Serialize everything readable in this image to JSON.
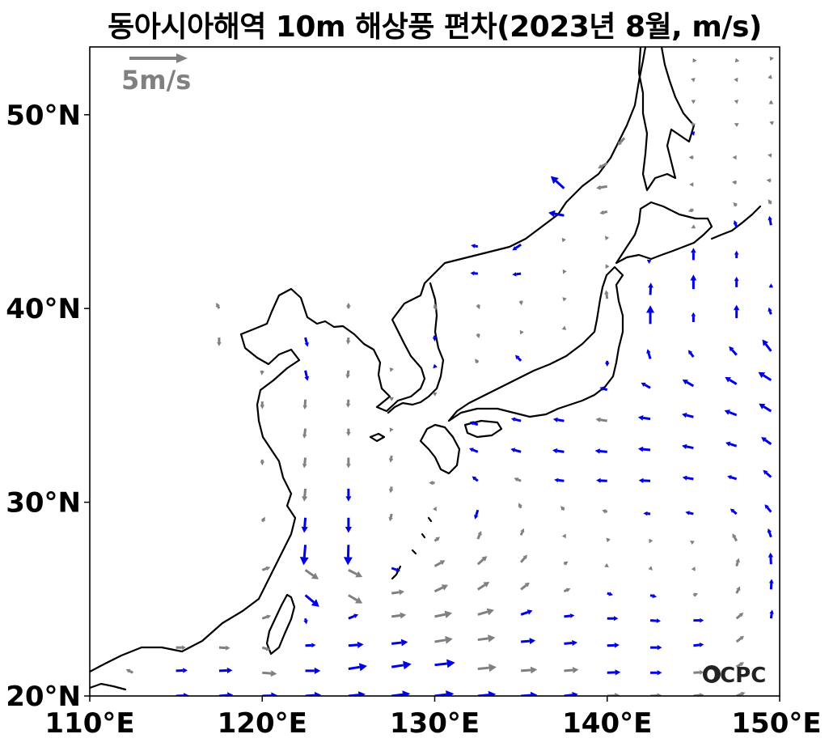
{
  "title": "동아시아해역 10m 해상풍 편차(2023년 8월, m/s)",
  "map": {
    "lon_range": [
      110,
      150
    ],
    "lat_range": [
      20,
      53.5
    ],
    "x_ticks": [
      {
        "lon": 110,
        "label": "110°E"
      },
      {
        "lon": 120,
        "label": "120°E"
      },
      {
        "lon": 130,
        "label": "130°E"
      },
      {
        "lon": 140,
        "label": "140°E"
      },
      {
        "lon": 150,
        "label": "150°E"
      }
    ],
    "y_ticks": [
      {
        "lat": 20,
        "label": "20°N"
      },
      {
        "lat": 30,
        "label": "30°N"
      },
      {
        "lat": 40,
        "label": "40°N"
      },
      {
        "lat": 50,
        "label": "50°N"
      }
    ]
  },
  "reference_vector": {
    "label": "5m/s",
    "speed": 5,
    "color": "#808080"
  },
  "vector_colors": {
    "significant": "#0000e6",
    "normal": "#808080",
    "coast": "#000000"
  },
  "logo": {
    "text": "OCPC"
  },
  "wind_vectors": [
    [
      115,
      20,
      2.2,
      0.1,
      1
    ],
    [
      117.5,
      20,
      2.4,
      0.2,
      1
    ],
    [
      120,
      20,
      2.6,
      0.1,
      1
    ],
    [
      122.5,
      20,
      2.7,
      0.2,
      1
    ],
    [
      125,
      20,
      2.9,
      0.3,
      1
    ],
    [
      127.5,
      20,
      3.2,
      0.4,
      1
    ],
    [
      130,
      20,
      3.3,
      0.4,
      1
    ],
    [
      132.5,
      20,
      3.1,
      0.3,
      1
    ],
    [
      135,
      20,
      2.8,
      0.2,
      1
    ],
    [
      137.5,
      20,
      2.4,
      0.3,
      1
    ],
    [
      140,
      20,
      2.2,
      0.1,
      0
    ],
    [
      142.5,
      20,
      2,
      0.1,
      0
    ],
    [
      145,
      20,
      1.8,
      0.2,
      0
    ],
    [
      147.5,
      20,
      1.5,
      0.6,
      0
    ],
    [
      112.5,
      21.2,
      -1.2,
      0.6,
      0
    ],
    [
      115,
      21.3,
      2,
      0.1,
      1
    ],
    [
      117.5,
      21.3,
      2.3,
      0.1,
      1
    ],
    [
      120,
      21.2,
      2.5,
      -0.2,
      0
    ],
    [
      122.5,
      21.3,
      2.6,
      0,
      1
    ],
    [
      125,
      21.4,
      3.2,
      0.5,
      1
    ],
    [
      127.5,
      21.5,
      3.4,
      0.5,
      1
    ],
    [
      130,
      21.6,
      3.5,
      0.4,
      1
    ],
    [
      132.5,
      21.4,
      3.2,
      0.3,
      0
    ],
    [
      135,
      21.3,
      2.8,
      0.2,
      0
    ],
    [
      137.5,
      21.3,
      2.5,
      0.2,
      0
    ],
    [
      140,
      21.2,
      2.3,
      0.1,
      1
    ],
    [
      142.5,
      21.2,
      2,
      0,
      1
    ],
    [
      145,
      21.2,
      1.8,
      0.1,
      0
    ],
    [
      147.5,
      21.5,
      1.3,
      0.8,
      0
    ],
    [
      115,
      22.5,
      1.7,
      0,
      0
    ],
    [
      117.5,
      22.5,
      1.9,
      -0.1,
      0
    ],
    [
      120,
      22.5,
      1.4,
      -0.4,
      0
    ],
    [
      122.5,
      22.6,
      1.8,
      0.1,
      1
    ],
    [
      125,
      22.6,
      2.6,
      0.2,
      1
    ],
    [
      127.5,
      22.7,
      2.8,
      0.3,
      1
    ],
    [
      130,
      22.8,
      3.1,
      0.5,
      0
    ],
    [
      132.5,
      22.9,
      3,
      0.4,
      0
    ],
    [
      135,
      22.8,
      2.5,
      0.2,
      1
    ],
    [
      137.5,
      22.7,
      2.3,
      0.2,
      1
    ],
    [
      140,
      22.6,
      2.1,
      0.1,
      1
    ],
    [
      142.5,
      22.5,
      2,
      0,
      1
    ],
    [
      145,
      22.6,
      1.8,
      0.2,
      1
    ],
    [
      147.5,
      22.8,
      1.3,
      1,
      0
    ],
    [
      120,
      24,
      1.5,
      0.5,
      0
    ],
    [
      122.5,
      24,
      0.2,
      -1,
      1
    ],
    [
      125,
      24,
      1.7,
      0.7,
      1
    ],
    [
      127.5,
      24.1,
      2.5,
      0.3,
      0
    ],
    [
      130,
      24.1,
      3,
      0.6,
      0
    ],
    [
      132.5,
      24.2,
      2.8,
      0.8,
      0
    ],
    [
      135,
      24.2,
      2,
      0.7,
      1
    ],
    [
      137.5,
      24.1,
      1.8,
      0.2,
      1
    ],
    [
      140,
      24,
      1.9,
      0,
      1
    ],
    [
      142.5,
      23.9,
      1.8,
      -0.1,
      1
    ],
    [
      145,
      23.9,
      1.8,
      0,
      1
    ],
    [
      147.5,
      24,
      1.2,
      1,
      0
    ],
    [
      149.5,
      24,
      0.2,
      1.5,
      1
    ],
    [
      122.5,
      25.2,
      2.4,
      -2,
      1
    ],
    [
      125,
      25.2,
      2.4,
      -1.4,
      0
    ],
    [
      127.5,
      25.3,
      2.2,
      0.3,
      0
    ],
    [
      130,
      25.4,
      2.3,
      1.1,
      0
    ],
    [
      132.5,
      25.5,
      2,
      1.3,
      0
    ],
    [
      135,
      25.5,
      1.5,
      1.2,
      0
    ],
    [
      137.5,
      25.4,
      1.1,
      0.5,
      0
    ],
    [
      140,
      25.3,
      1,
      -0.3,
      1
    ],
    [
      142.5,
      25.2,
      1.1,
      -0.3,
      1
    ],
    [
      145,
      25.2,
      0.8,
      0.3,
      0
    ],
    [
      147.5,
      25.3,
      0.6,
      1.2,
      0
    ],
    [
      149.5,
      25.5,
      0.1,
      1.8,
      1
    ],
    [
      120,
      26.5,
      1.4,
      0.5,
      0
    ],
    [
      122.5,
      26.5,
      2.3,
      -1.6,
      0
    ],
    [
      125,
      26.5,
      2.4,
      -1.2,
      0
    ],
    [
      127.5,
      26.6,
      1.5,
      -0.5,
      1
    ],
    [
      130,
      26.7,
      1.8,
      1,
      0
    ],
    [
      132.5,
      26.8,
      1.6,
      1.4,
      0
    ],
    [
      135,
      26.9,
      1.1,
      1.3,
      0
    ],
    [
      137.5,
      26.8,
      0.7,
      0.5,
      0
    ],
    [
      140,
      26.7,
      0.3,
      -0.2,
      0
    ],
    [
      142.5,
      26.6,
      0.4,
      -0.4,
      0
    ],
    [
      145,
      26.5,
      0.3,
      0.6,
      0
    ],
    [
      147.5,
      26.7,
      0.4,
      1.4,
      0
    ],
    [
      149.5,
      26.8,
      -0.1,
      2,
      1
    ],
    [
      122.5,
      27.8,
      -0.3,
      -3.5,
      1
    ],
    [
      125,
      27.8,
      -0.1,
      -3.5,
      1
    ],
    [
      130,
      28,
      0.9,
      0.7,
      0
    ],
    [
      132.5,
      28.1,
      0.6,
      1.4,
      0
    ],
    [
      135,
      28.3,
      0.5,
      1.2,
      0
    ],
    [
      137.5,
      28.2,
      0.3,
      0.6,
      0
    ],
    [
      140,
      28.1,
      -0.2,
      0.2,
      0
    ],
    [
      142.5,
      28,
      -0.2,
      -0.4,
      0
    ],
    [
      145,
      27.9,
      -0.6,
      0.4,
      0
    ],
    [
      147.5,
      28,
      -0.7,
      1.3,
      0
    ],
    [
      149.5,
      28.2,
      -0.5,
      1.5,
      1
    ],
    [
      120,
      29,
      0.5,
      0.8,
      0
    ],
    [
      122.5,
      29.2,
      -0.2,
      -2.6,
      1
    ],
    [
      125,
      29.2,
      0,
      -2.6,
      1
    ],
    [
      127.5,
      29.4,
      -0.3,
      -1.3,
      0
    ],
    [
      130,
      29.6,
      0.3,
      0.6,
      0
    ],
    [
      132.5,
      29.6,
      -0.5,
      -1.6,
      1
    ],
    [
      135,
      29.7,
      -0.4,
      0.9,
      0
    ],
    [
      137.5,
      29.6,
      -0.6,
      0.7,
      0
    ],
    [
      140,
      29.5,
      -0.9,
      0.3,
      0
    ],
    [
      142.5,
      29.4,
      -1.2,
      0.1,
      1
    ],
    [
      145,
      29.4,
      -1.4,
      0.3,
      1
    ],
    [
      147.5,
      29.4,
      -1.1,
      0.9,
      1
    ],
    [
      149.5,
      29.5,
      -1.1,
      1.3,
      1
    ],
    [
      122.5,
      30.7,
      -0.2,
      -2.2,
      0
    ],
    [
      125,
      30.7,
      0,
      -2.2,
      1
    ],
    [
      127.5,
      30.8,
      -0.2,
      -1.1,
      0
    ],
    [
      130,
      31,
      -1,
      0,
      0
    ],
    [
      132.5,
      31.1,
      -1,
      0.8,
      1
    ],
    [
      135,
      31.1,
      -1.2,
      0.5,
      0
    ],
    [
      137.5,
      31.1,
      -1.7,
      0.2,
      1
    ],
    [
      140,
      31.1,
      -1.9,
      0.1,
      1
    ],
    [
      142.5,
      31.1,
      -2,
      0.1,
      1
    ],
    [
      145,
      31.2,
      -1.9,
      0.3,
      1
    ],
    [
      147.5,
      31.2,
      -1.6,
      0.5,
      1
    ],
    [
      149.5,
      31.3,
      -1.4,
      1.2,
      1
    ],
    [
      120,
      32.2,
      0,
      -1,
      0
    ],
    [
      122.5,
      32.3,
      -0.2,
      -1.8,
      0
    ],
    [
      125,
      32.3,
      0,
      -1.8,
      0
    ],
    [
      127.5,
      32.4,
      -0.2,
      -1.2,
      0
    ],
    [
      132.5,
      32.6,
      -1.5,
      0.6,
      1
    ],
    [
      135,
      32.6,
      -1.8,
      0.5,
      1
    ],
    [
      137.5,
      32.6,
      -2,
      0.3,
      1
    ],
    [
      140,
      32.6,
      -2.1,
      0.2,
      1
    ],
    [
      142.5,
      32.7,
      -2.1,
      0.2,
      1
    ],
    [
      145,
      32.8,
      -2,
      0.4,
      1
    ],
    [
      147.5,
      32.9,
      -1.9,
      0.6,
      1
    ],
    [
      149.5,
      33,
      -1.7,
      1.2,
      1
    ],
    [
      122.5,
      33.8,
      -0.2,
      -1.7,
      0
    ],
    [
      125,
      33.8,
      0,
      -1.3,
      0
    ],
    [
      127.5,
      33.8,
      -0.3,
      -0.6,
      0
    ],
    [
      132.5,
      34,
      -1.4,
      0.5,
      1
    ],
    [
      135,
      34.2,
      -1.7,
      0.4,
      1
    ],
    [
      137.5,
      34.2,
      -1.9,
      0.3,
      1
    ],
    [
      140,
      34.2,
      -2,
      0.3,
      0
    ],
    [
      142.5,
      34.3,
      -2.1,
      0.3,
      1
    ],
    [
      145,
      34.4,
      -2,
      0.5,
      1
    ],
    [
      147.5,
      34.5,
      -2.1,
      0.8,
      1
    ],
    [
      149.5,
      34.7,
      -2.1,
      1.3,
      1
    ],
    [
      120,
      35.2,
      0,
      -1.3,
      0
    ],
    [
      122.5,
      35.3,
      -0.1,
      -1.7,
      0
    ],
    [
      125,
      35.3,
      -0.1,
      -1.4,
      0
    ],
    [
      127.5,
      35.3,
      0,
      -0.3,
      0
    ],
    [
      130,
      35.6,
      -0.4,
      0.2,
      0
    ],
    [
      140,
      35.8,
      -1.3,
      0.4,
      1
    ],
    [
      142.5,
      35.9,
      -1.6,
      0.9,
      1
    ],
    [
      145,
      36,
      -1.9,
      1.1,
      1
    ],
    [
      147.5,
      36.1,
      -2,
      1.2,
      1
    ],
    [
      149.5,
      36.3,
      -2.2,
      1.4,
      1
    ],
    [
      120,
      36.8,
      -0.1,
      -0.8,
      0
    ],
    [
      122.5,
      36.8,
      0.4,
      -1.8,
      1
    ],
    [
      125,
      36.8,
      -0.2,
      -1.4,
      0
    ],
    [
      127.5,
      36.9,
      -0.2,
      -0.6,
      0
    ],
    [
      130,
      37,
      -0.3,
      -0.3,
      1
    ],
    [
      132.5,
      37.2,
      -0.5,
      0.7,
      0
    ],
    [
      135,
      37.3,
      -1,
      1,
      1
    ],
    [
      140,
      37.3,
      0,
      -1,
      1
    ],
    [
      142.5,
      37.4,
      -0.5,
      1.7,
      1
    ],
    [
      145,
      37.5,
      -0.9,
      1.2,
      1
    ],
    [
      147.5,
      37.6,
      -1.3,
      1.5,
      1
    ],
    [
      149.5,
      37.8,
      -1.5,
      2,
      1
    ],
    [
      117.5,
      38.5,
      0,
      -1.5,
      0
    ],
    [
      122.5,
      38.5,
      0.4,
      -1.6,
      1
    ],
    [
      125,
      38.5,
      -0.1,
      -1.2,
      0
    ],
    [
      130,
      38.6,
      0,
      -1,
      1
    ],
    [
      132.5,
      38.7,
      0.2,
      -0.8,
      0
    ],
    [
      135,
      38.8,
      -0.2,
      0.3,
      0
    ],
    [
      137.5,
      38.9,
      0.1,
      0.7,
      0
    ],
    [
      142.5,
      39.2,
      0,
      3.2,
      1
    ],
    [
      145,
      39.3,
      0,
      1.7,
      1
    ],
    [
      147.5,
      39.5,
      0,
      2.3,
      1
    ],
    [
      149.5,
      39.7,
      -0.4,
      1.2,
      1
    ],
    [
      117.5,
      40,
      -0.5,
      1,
      0
    ],
    [
      125,
      40,
      0,
      1,
      0
    ],
    [
      130,
      40.2,
      0.2,
      -1,
      0
    ],
    [
      132.5,
      40.2,
      0.3,
      -0.8,
      0
    ],
    [
      135,
      40.4,
      0.1,
      -0.8,
      0
    ],
    [
      137.5,
      40.5,
      -0.3,
      0.3,
      0
    ],
    [
      140,
      40.5,
      -0.2,
      1.5,
      0
    ],
    [
      142.5,
      40.7,
      0.1,
      2.1,
      1
    ],
    [
      145,
      41,
      0,
      2.5,
      1
    ],
    [
      147.5,
      41.1,
      0,
      1.8,
      1
    ],
    [
      149.5,
      41.2,
      0,
      0.3,
      1
    ],
    [
      132.5,
      41.8,
      -1.3,
      0.1,
      1
    ],
    [
      135,
      41.8,
      -1.5,
      -0.2,
      1
    ],
    [
      137.5,
      41.9,
      -0.2,
      -0.4,
      0
    ],
    [
      140,
      42.2,
      -0.3,
      -0.5,
      0
    ],
    [
      142.5,
      42.4,
      -0.6,
      0.4,
      1
    ],
    [
      145,
      42.5,
      0,
      2.1,
      1
    ],
    [
      147.5,
      42.6,
      0,
      1.3,
      1
    ],
    [
      132.5,
      43.2,
      -1.2,
      0.2,
      1
    ],
    [
      135,
      43.3,
      -1.5,
      -1,
      1
    ],
    [
      137.5,
      43.5,
      -0.4,
      0.5,
      0
    ],
    [
      140,
      43.6,
      -0.4,
      0.5,
      0
    ],
    [
      145,
      44.2,
      -0.4,
      -0.2,
      0
    ],
    [
      147.5,
      44.2,
      -0.4,
      1.2,
      1
    ],
    [
      149.5,
      44.3,
      -0.3,
      1.6,
      1
    ],
    [
      137.5,
      44.8,
      -2.7,
      0.5,
      1
    ],
    [
      140,
      45,
      -1.3,
      -0.3,
      0
    ],
    [
      145,
      45.1,
      -0.9,
      -0.3,
      0
    ],
    [
      147.5,
      45.3,
      -0.6,
      0.6,
      0
    ],
    [
      149.5,
      45.4,
      -0.5,
      0.8,
      0
    ],
    [
      137.5,
      46.2,
      -2.3,
      2.1,
      1
    ],
    [
      140,
      46.3,
      -1.9,
      -0.3,
      0
    ],
    [
      145,
      46.4,
      -0.7,
      0,
      0
    ],
    [
      147.5,
      46.5,
      -0.8,
      0.1,
      0
    ],
    [
      149.5,
      46.6,
      -0.8,
      0.1,
      0
    ],
    [
      140,
      47.5,
      -1.6,
      -0.9,
      0
    ],
    [
      141,
      48.8,
      -1.2,
      -1.3,
      0
    ],
    [
      145,
      47.8,
      -0.8,
      0,
      0
    ],
    [
      147.5,
      47.8,
      -0.7,
      0,
      0
    ],
    [
      149.5,
      47.9,
      -0.6,
      0.1,
      0
    ],
    [
      145,
      49,
      0.1,
      -0.3,
      1
    ],
    [
      145,
      49.5,
      0.4,
      0.1,
      0
    ],
    [
      147.5,
      49.5,
      -0.4,
      0.2,
      0
    ],
    [
      149.5,
      49.6,
      -0.3,
      0.1,
      0
    ],
    [
      145,
      50.7,
      0,
      -0.5,
      0
    ],
    [
      147.5,
      50.7,
      0.1,
      -0.5,
      0
    ],
    [
      149.5,
      50.7,
      0,
      0.2,
      0
    ],
    [
      145,
      51.8,
      0.1,
      -0.4,
      0
    ],
    [
      147.5,
      51.8,
      0.2,
      -0.4,
      0
    ],
    [
      149.5,
      51.9,
      0.2,
      -0.2,
      0
    ],
    [
      145,
      52.8,
      0.6,
      0,
      0
    ],
    [
      147.5,
      52.8,
      0.5,
      -0.1,
      0
    ],
    [
      149.5,
      52.9,
      0.5,
      0.1,
      0
    ]
  ]
}
